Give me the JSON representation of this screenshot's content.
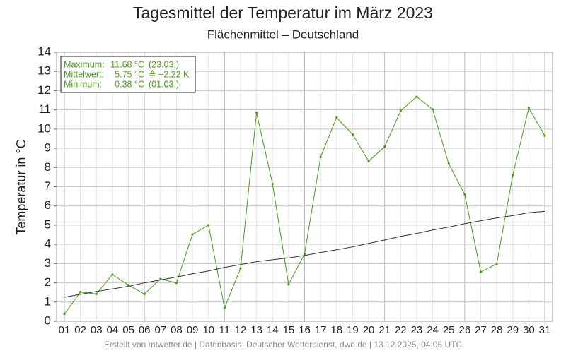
{
  "chart_data": {
    "type": "line",
    "title": "Tagesmittel der Temperatur im März 2023",
    "subtitle": "Flächenmittel – Deutschland",
    "y_label": "Temperatur in °C",
    "footer": "Erstellt von mtwetter.de | Datenbasis: Deutscher Wetterdienst, dwd.de | 13.12.2025, 04:05 UTC",
    "annotation": [
      [
        "Maximum:",
        "11.68 °C",
        "(23.03.)"
      ],
      [
        "Mittelwert:",
        "5.75 °C",
        "≙ +2.22 K"
      ],
      [
        "Minimum:",
        "0.38 °C",
        "(01.03.)"
      ]
    ],
    "categories": [
      "01",
      "02",
      "03",
      "04",
      "05",
      "06",
      "07",
      "08",
      "09",
      "10",
      "11",
      "12",
      "13",
      "14",
      "15",
      "16",
      "17",
      "18",
      "19",
      "20",
      "21",
      "22",
      "23",
      "24",
      "25",
      "26",
      "27",
      "28",
      "29",
      "30",
      "31"
    ],
    "series": [
      {
        "color": "#4a9a1a",
        "markers": true,
        "values": [
          0.38,
          1.52,
          1.42,
          2.43,
          1.88,
          1.42,
          2.2,
          2.0,
          4.52,
          5.0,
          0.7,
          2.75,
          10.85,
          7.15,
          1.92,
          3.5,
          8.55,
          10.6,
          9.72,
          8.33,
          9.08,
          10.95,
          11.68,
          11.02,
          8.2,
          6.6,
          2.57,
          2.98,
          7.6,
          11.1,
          9.65
        ]
      },
      {
        "color": "#333333",
        "markers": false,
        "values": [
          1.25,
          1.4,
          1.55,
          1.68,
          1.82,
          2.0,
          2.15,
          2.3,
          2.47,
          2.62,
          2.8,
          2.95,
          3.1,
          3.2,
          3.3,
          3.42,
          3.58,
          3.72,
          3.87,
          4.05,
          4.23,
          4.42,
          4.57,
          4.75,
          4.9,
          5.08,
          5.23,
          5.38,
          5.5,
          5.65,
          5.72
        ]
      }
    ],
    "ylim": [
      0,
      14
    ],
    "yticks": [
      0,
      1,
      2,
      3,
      4,
      5,
      6,
      7,
      8,
      9,
      10,
      11,
      12,
      13,
      14
    ],
    "grid": true
  }
}
